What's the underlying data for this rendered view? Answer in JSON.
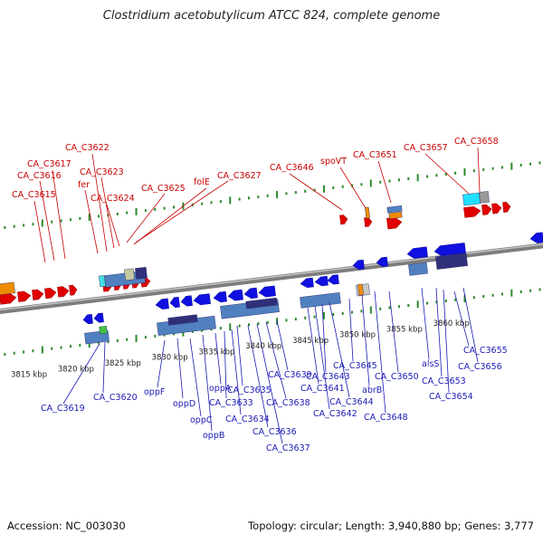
{
  "title": "Clostridium acetobutylicum ATCC 824, complete genome",
  "accession": "Accession: NC_003030",
  "summary": "Topology: circular; Length: 3,940,880 bp; Genes: 3,777",
  "colors": {
    "forward": "#e00000",
    "reverse": "#1010e0",
    "forward_label": "#c80000",
    "reverse_label": "#1a1ab4",
    "backbone": "#8a8a8a",
    "dots": "#2a8a2a"
  },
  "kbp_ticks": [
    {
      "label": "3815 kbp",
      "x": 3815
    },
    {
      "label": "3820 kbp",
      "x": 3820
    },
    {
      "label": "3825 kbp",
      "x": 3825
    },
    {
      "label": "3830 kbp",
      "x": 3830
    },
    {
      "label": "3835 kbp",
      "x": 3835
    },
    {
      "label": "3840 kbp",
      "x": 3840
    },
    {
      "label": "3845 kbp",
      "x": 3845
    },
    {
      "label": "3850 kbp",
      "x": 3850
    },
    {
      "label": "3855 kbp",
      "x": 3855
    },
    {
      "label": "3860 kbp",
      "x": 3860
    }
  ],
  "forward_genes": [
    {
      "label": "CA_C3615",
      "x": 3818.3
    },
    {
      "label": "CA_C3616",
      "x": 3819.2
    },
    {
      "label": "CA_C3617",
      "x": 3819.9
    },
    {
      "label": "fer",
      "x": 3822.6
    },
    {
      "label": "CA_C3622",
      "x": 3823.3
    },
    {
      "label": "CA_C3623",
      "x": 3823.9
    },
    {
      "label": "CA_C3624",
      "x": 3824.6
    },
    {
      "label": "CA_C3625",
      "x": 3825.3
    },
    {
      "label": "folE",
      "x": 3825.9
    },
    {
      "label": "CA_C3627",
      "x": 3826.6
    },
    {
      "label": "CA_C3646",
      "x": 3846.0
    },
    {
      "label": "spoVT",
      "x": 3848.6
    },
    {
      "label": "CA_C3651",
      "x": 3850.5
    },
    {
      "label": "CA_C3657",
      "x": 3857.3
    },
    {
      "label": "CA_C3658",
      "x": 3858.3
    }
  ],
  "reverse_genes": [
    {
      "label": "CA_C3619",
      "x": 3821.1
    },
    {
      "label": "CA_C3620",
      "x": 3822.4
    },
    {
      "label": "oppF",
      "x": 3829.3
    },
    {
      "label": "oppD",
      "x": 3830.9
    },
    {
      "label": "oppC",
      "x": 3832.1
    },
    {
      "label": "oppB",
      "x": 3833.1
    },
    {
      "label": "oppA",
      "x": 3834.1
    },
    {
      "label": "CA_C3633",
      "x": 3835.0
    },
    {
      "label": "CA_C3634",
      "x": 3835.7
    },
    {
      "label": "CA_C3635",
      "x": 3836.5
    },
    {
      "label": "CA_C3636",
      "x": 3837.4
    },
    {
      "label": "CA_C3637",
      "x": 3838.2
    },
    {
      "label": "CA_C3638",
      "x": 3839.0
    },
    {
      "label": "CA_C3639",
      "x": 3839.7
    },
    {
      "label": "CA_C3641",
      "x": 3842.4
    },
    {
      "label": "CA_C3642",
      "x": 3843.1
    },
    {
      "label": "CA_C3643",
      "x": 3843.8
    },
    {
      "label": "CA_C3644",
      "x": 3844.5
    },
    {
      "label": "CA_C3645",
      "x": 3845.3
    },
    {
      "label": "abrB",
      "x": 3846.3
    },
    {
      "label": "CA_C3648",
      "x": 3847.3
    },
    {
      "label": "CA_C3650",
      "x": 3849.5
    },
    {
      "label": "alsS",
      "x": 3853.6
    },
    {
      "label": "CA_C3653",
      "x": 3854.4
    },
    {
      "label": "CA_C3654",
      "x": 3855.2
    },
    {
      "label": "CA_C3655",
      "x": 3856.3
    },
    {
      "label": "CA_C3656",
      "x": 3857.3
    }
  ]
}
